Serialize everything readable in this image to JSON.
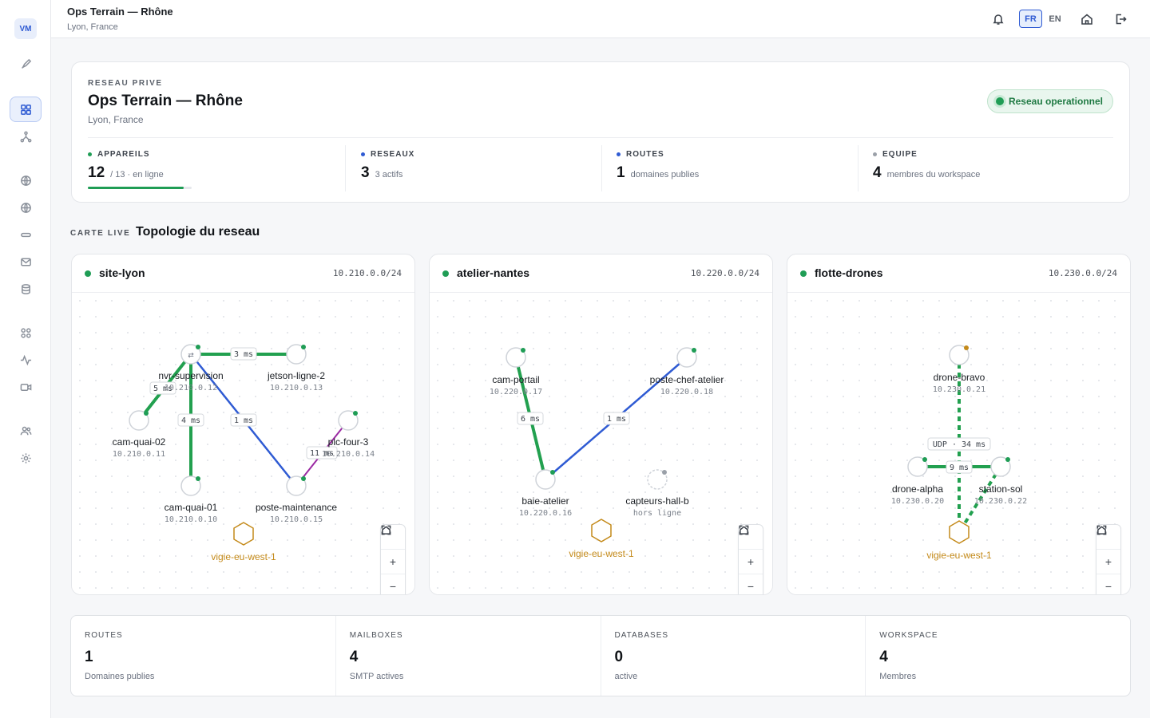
{
  "sidebar": {
    "avatar": "VM",
    "icons": [
      "rocket-icon",
      "dashboard-icon",
      "topology-icon",
      "globe-icon",
      "globe-alt-icon",
      "router-icon",
      "mail-icon",
      "database-icon",
      "apps-icon",
      "activity-icon",
      "video-icon",
      "users-icon",
      "settings-icon"
    ]
  },
  "header": {
    "title": "Ops Terrain — Rhône",
    "subtitle": "Lyon, France",
    "lang_fr": "FR",
    "lang_en": "EN"
  },
  "overview": {
    "kicker": "RESEAU PRIVE",
    "title": "Ops Terrain — Rhône",
    "subtitle": "Lyon, France",
    "status": "Reseau operationnel",
    "stats": [
      {
        "label": "APPAREILS",
        "value": "12",
        "text": "/ 13 · en ligne",
        "color": "#1f9d55",
        "progress": 0.92
      },
      {
        "label": "RESEAUX",
        "value": "3",
        "text": "3 actifs",
        "color": "#2f5bd3"
      },
      {
        "label": "ROUTES",
        "value": "1",
        "text": "domaines publies",
        "color": "#2f5bd3"
      },
      {
        "label": "EQUIPE",
        "value": "4",
        "text": "membres du workspace",
        "color": "#9aa0a8"
      }
    ]
  },
  "section": {
    "kicker": "CARTE LIVE",
    "title": "Topologie du reseau"
  },
  "networks": [
    {
      "name": "site-lyon",
      "cidr": "10.210.0.0/24",
      "gateway": "vigie-eu-west-1",
      "nodes": [
        {
          "id": "nvr",
          "name": "nvr-supervision",
          "ip": "10.210.0.12",
          "status": "online",
          "hub": true
        },
        {
          "id": "jetson",
          "name": "jetson-ligne-2",
          "ip": "10.210.0.13",
          "status": "online"
        },
        {
          "id": "camq2",
          "name": "cam-quai-02",
          "ip": "10.210.0.11",
          "status": "online"
        },
        {
          "id": "plc",
          "name": "plc-four-3",
          "ip": "10.210.0.14",
          "status": "online"
        },
        {
          "id": "camq1",
          "name": "cam-quai-01",
          "ip": "10.210.0.10",
          "status": "online"
        },
        {
          "id": "poste",
          "name": "poste-maintenance",
          "ip": "10.210.0.15",
          "status": "online"
        }
      ],
      "links": [
        {
          "label": "3 ms"
        },
        {
          "label": "5 ms"
        },
        {
          "label": "4 ms"
        },
        {
          "label": "1 ms"
        },
        {
          "label": "11 ms"
        }
      ]
    },
    {
      "name": "atelier-nantes",
      "cidr": "10.220.0.0/24",
      "gateway": "vigie-eu-west-1",
      "nodes": [
        {
          "id": "camp",
          "name": "cam-portail",
          "ip": "10.220.0.17",
          "status": "online"
        },
        {
          "id": "chef",
          "name": "poste-chef-atelier",
          "ip": "10.220.0.18",
          "status": "online"
        },
        {
          "id": "baie",
          "name": "baie-atelier",
          "ip": "10.220.0.16",
          "status": "online"
        },
        {
          "id": "capt",
          "name": "capteurs-hall-b",
          "ip": "hors ligne",
          "status": "offline"
        }
      ],
      "links": [
        {
          "label": "6 ms"
        },
        {
          "label": "1 ms"
        }
      ]
    },
    {
      "name": "flotte-drones",
      "cidr": "10.230.0.0/24",
      "gateway": "vigie-eu-west-1",
      "nodes": [
        {
          "id": "bravo",
          "name": "drone-bravo",
          "ip": "10.230.0.21",
          "status": "warning"
        },
        {
          "id": "alpha",
          "name": "drone-alpha",
          "ip": "10.230.0.20",
          "status": "online"
        },
        {
          "id": "sol",
          "name": "station-sol",
          "ip": "10.230.0.22",
          "status": "online"
        }
      ],
      "links": [
        {
          "label": "UDP · 34 ms"
        },
        {
          "label": "9 ms"
        }
      ]
    }
  ],
  "bottom": [
    {
      "label": "ROUTES",
      "value": "1",
      "sub": "Domaines publies"
    },
    {
      "label": "MAILBOXES",
      "value": "4",
      "sub": "SMTP actives"
    },
    {
      "label": "DATABASES",
      "value": "0",
      "sub": "active"
    },
    {
      "label": "WORKSPACE",
      "value": "4",
      "sub": "Membres"
    }
  ],
  "colors": {
    "accent": "#2f5bd3",
    "online": "#1f9d55",
    "warning": "#c48a1a",
    "gateway": "#c48a1a",
    "link_green": "#22a04f",
    "link_blue": "#2f5bd3",
    "link_purple": "#9b2aa3"
  }
}
